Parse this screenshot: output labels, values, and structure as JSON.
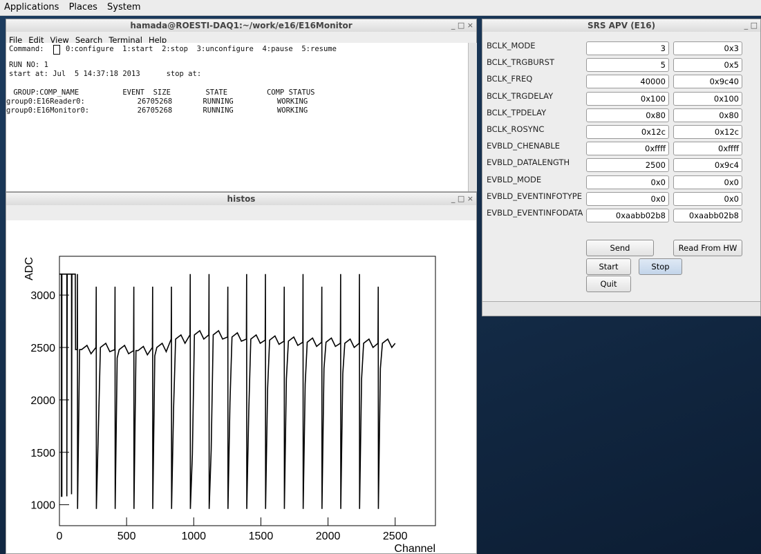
{
  "panel": {
    "menus": [
      "Applications",
      "Places",
      "System"
    ]
  },
  "terminal": {
    "title": "hamada@ROESTI-DAQ1:~/work/e16/E16Monitor",
    "menus": [
      "File",
      "Edit",
      "View",
      "Search",
      "Terminal",
      "Help"
    ],
    "prompt": "Command:",
    "options": "0:configure  1:start  2:stop  3:unconfigure  4:pause  5:resume",
    "lines": [
      "RUN NO: 1",
      "start at: Jul  5 14:37:18 2013      stop at:",
      " GROUP:COMP_NAME          EVENT  SIZE        STATE         COMP STATUS",
      "group0:E16Reader0:            26705268       RUNNING          WORKING",
      "group0:E16Monitor0:           26705268       RUNNING          WORKING"
    ]
  },
  "histos": {
    "title": "histos",
    "chart_data": {
      "type": "line",
      "x_label": "Channel",
      "y_label": "ADC",
      "color": "#000000",
      "xlim": [
        0,
        2800
      ],
      "ylim": [
        800,
        3370
      ],
      "xticks": [
        0,
        500,
        1000,
        1500,
        2000,
        2500
      ],
      "yticks": [
        1000,
        1500,
        2000,
        2500,
        3000
      ],
      "x": [
        0,
        15,
        15,
        18,
        18,
        55,
        55,
        58,
        90,
        90,
        93,
        118,
        120,
        132,
        134,
        135,
        150,
        165,
        205,
        235,
        272,
        274,
        275,
        290,
        305,
        345,
        375,
        412,
        414,
        415,
        430,
        445,
        485,
        515,
        552,
        554,
        555,
        570,
        585,
        625,
        655,
        692,
        694,
        695,
        710,
        725,
        765,
        795,
        832,
        834,
        835,
        850,
        865,
        905,
        935,
        972,
        974,
        975,
        990,
        1005,
        1045,
        1075,
        1112,
        1114,
        1115,
        1130,
        1145,
        1185,
        1215,
        1252,
        1254,
        1255,
        1270,
        1285,
        1325,
        1355,
        1392,
        1394,
        1395,
        1410,
        1425,
        1465,
        1495,
        1532,
        1534,
        1535,
        1550,
        1565,
        1605,
        1635,
        1672,
        1674,
        1675,
        1690,
        1705,
        1745,
        1775,
        1812,
        1814,
        1815,
        1830,
        1845,
        1885,
        1915,
        1952,
        1954,
        1955,
        1970,
        1985,
        2025,
        2055,
        2092,
        2094,
        2095,
        2110,
        2125,
        2165,
        2195,
        2232,
        2234,
        2235,
        2250,
        2265,
        2305,
        2335,
        2372,
        2374,
        2375,
        2390,
        2405,
        2445,
        2475,
        2500
      ],
      "values": [
        3200,
        3200,
        1080,
        1080,
        3200,
        3200,
        1080,
        3200,
        3200,
        1100,
        3200,
        3200,
        2480,
        2480,
        3200,
        960,
        2480,
        2480,
        2520,
        2440,
        2500,
        3080,
        960,
        1720,
        2500,
        2540,
        2460,
        2480,
        3080,
        960,
        2400,
        2480,
        2520,
        2440,
        2470,
        3080,
        960,
        2470,
        2470,
        2510,
        2430,
        2500,
        3080,
        960,
        2420,
        2500,
        2540,
        2460,
        2580,
        3080,
        960,
        1920,
        2580,
        2620,
        2540,
        2620,
        3200,
        960,
        1480,
        2620,
        2660,
        2580,
        2620,
        3200,
        960,
        1520,
        2620,
        2660,
        2580,
        2600,
        3080,
        960,
        1980,
        2600,
        2640,
        2560,
        2580,
        3200,
        960,
        1900,
        2580,
        2620,
        2540,
        2570,
        3200,
        960,
        2100,
        2570,
        2610,
        2530,
        2560,
        3080,
        960,
        2200,
        2560,
        2600,
        2520,
        2550,
        3200,
        960,
        2150,
        2550,
        2590,
        2510,
        2550,
        3080,
        960,
        2300,
        2550,
        2590,
        2510,
        2540,
        3200,
        960,
        2250,
        2540,
        2580,
        2500,
        2540,
        3200,
        960,
        2200,
        2540,
        2580,
        2500,
        2540,
        3080,
        960,
        2300,
        2540,
        2580,
        2500,
        2540
      ]
    }
  },
  "srs": {
    "title": "SRS APV (E16)",
    "rows": [
      [
        "BCLK_MODE",
        "3",
        "0x3"
      ],
      [
        "BCLK_TRGBURST",
        "5",
        "0x5"
      ],
      [
        "BCLK_FREQ",
        "40000",
        "0x9c40"
      ],
      [
        "BCLK_TRGDELAY",
        "0x100",
        "0x100"
      ],
      [
        "BCLK_TPDELAY",
        "0x80",
        "0x80"
      ],
      [
        "BCLK_ROSYNC",
        "0x12c",
        "0x12c"
      ],
      [
        "EVBLD_CHENABLE",
        "0xffff",
        "0xffff"
      ],
      [
        "EVBLD_DATALENGTH",
        "2500",
        "0x9c4"
      ],
      [
        "EVBLD_MODE",
        "0x0",
        "0x0"
      ],
      [
        "EVBLD_EVENTINFOTYPE",
        "0x0",
        "0x0"
      ],
      [
        "EVBLD_EVENTINFODATA",
        "0xaabb02b8",
        "0xaabb02b8"
      ]
    ],
    "buttons": [
      "Send",
      "Read From HW",
      "Start",
      "Stop",
      "Quit"
    ]
  }
}
